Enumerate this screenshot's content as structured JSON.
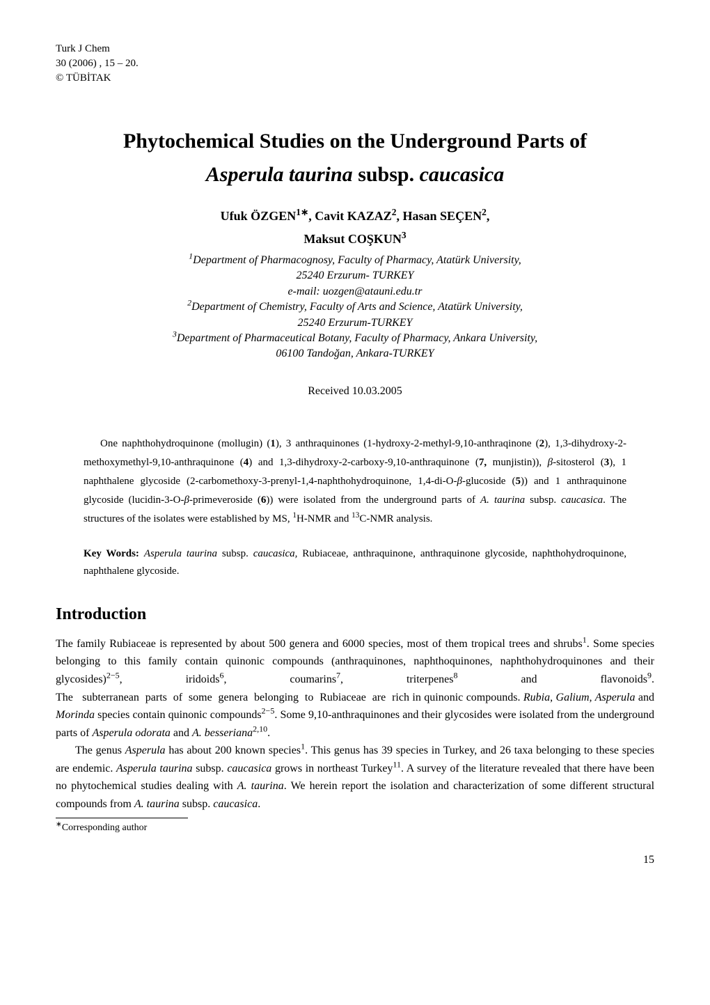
{
  "journal": {
    "name": "Turk J Chem",
    "volume_year_pages": "30 (2006) , 15 – 20.",
    "copyright": "© TÜBİTAK"
  },
  "title_line1": "Phytochemical Studies on the Underground Parts of",
  "title_line2_italic": "Asperula taurina",
  "title_line2_roman1": " subsp. ",
  "title_line2_italic2": "caucasica",
  "authors_line1": "Ufuk ÖZGEN",
  "authors_sup1": "1∗",
  "authors_line1b": ", Cavit KAZAZ",
  "authors_sup2": "2",
  "authors_line1c": ", Hasan SEÇEN",
  "authors_sup3": "2",
  "authors_line1d": ",",
  "authors_line2": "Maksut COŞKUN",
  "authors_sup4": "3",
  "aff1_sup": "1",
  "aff1": "Department of Pharmacognosy, Faculty of Pharmacy, Atatürk University,",
  "aff1b": "25240 Erzurum- TURKEY",
  "aff_email": "e-mail: uozgen@atauni.edu.tr",
  "aff2_sup": "2",
  "aff2": "Department of Chemistry, Faculty of Arts and Science, Atatürk University,",
  "aff2b": "25240 Erzurum-TURKEY",
  "aff3_sup": "3",
  "aff3": "Department of Pharmaceutical Botany, Faculty of Pharmacy, Ankara University,",
  "aff3b": "06100 Tandoğan, Ankara-TURKEY",
  "received": "Received 10.03.2005",
  "abstract_text": "One naphthohydroquinone (mollugin) (1), 3 anthraquinones (1-hydroxy-2-methyl-9,10-anthraqinone (2), 1,3-dihydroxy-2-methoxymethyl-9,10-anthraquinone (4) and 1,3-dihydroxy-2-carboxy-9,10-anthraquinone (7, munjistin)), β-sitosterol (3), 1 naphthalene glycoside (2-carbomethoxy-3-prenyl-1,4-naphthohydroquinone, 1,4-di-O-β-glucoside (5)) and 1 anthraquinone glycoside (lucidin-3-O-β-primeveroside (6)) were isolated from the underground parts of A. taurina subsp. caucasica. The structures of the isolates were established by MS, ¹H-NMR and ¹³C-NMR analysis.",
  "keywords_label": "Key Words:",
  "keywords_text": " Asperula taurina subsp. caucasica, Rubiaceae, anthraquinone, anthraquinone glycoside, naphthohydroquinone, naphthalene glycoside.",
  "section_intro": "Introduction",
  "intro_p1": "The family Rubiaceae is represented by about 500 genera and 6000 species, most of them tropical trees and shrubs¹. Some species belonging to this family contain quinonic compounds (anthraquinones, naphthoquinones, naphthohydroquinones and their glycosides)²⁻⁵, iridoids⁶, coumarins⁷, triterpenes⁸ and flavonoids⁹. The subterranean parts of some genera belonging to Rubiaceae are rich in quinonic compounds. Rubia, Galium, Asperula and Morinda species contain quinonic compounds²⁻⁵. Some 9,10-anthraquinones and their glycosides were isolated from the underground parts of Asperula odorata and A. besseriana²,¹⁰.",
  "intro_p2": "The genus Asperula has about 200 known species¹. This genus has 39 species in Turkey, and 26 taxa belonging to these species are endemic. Asperula taurina subsp. caucasica grows in northeast Turkey¹¹. A survey of the literature revealed that there have been no phytochemical studies dealing with A. taurina. We herein report the isolation and characterization of some different structural compounds from A. taurina subsp. caucasica.",
  "footnote": "∗Corresponding author",
  "page_number": "15"
}
